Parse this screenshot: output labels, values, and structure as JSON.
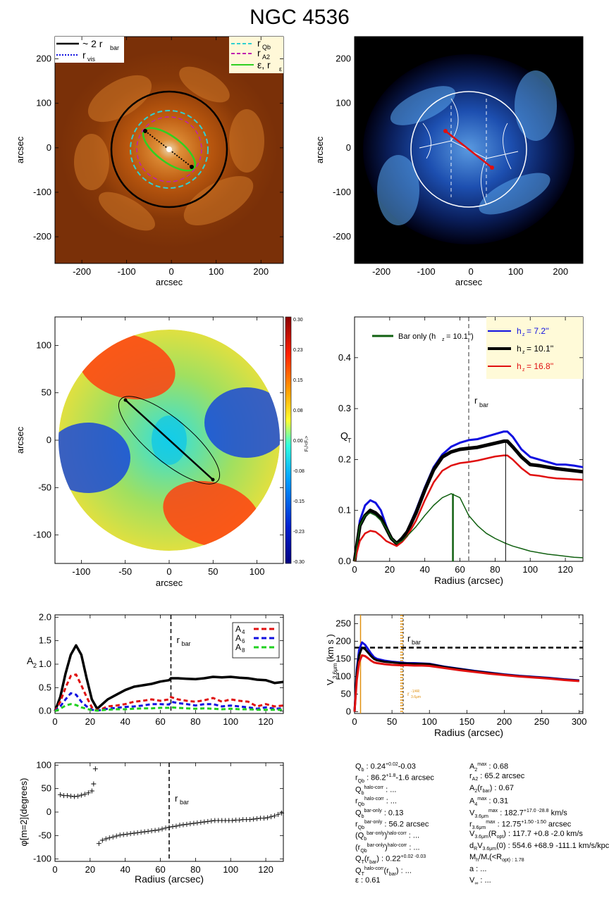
{
  "title": "NGC 4536",
  "colors": {
    "blue": "#1010e0",
    "black": "#000000",
    "red": "#e01010",
    "green": "#106010",
    "cyan": "#30d0d0",
    "magenta": "#c020b0",
    "lime": "#30d020",
    "orange": "#e09010"
  },
  "chart_data": [
    {
      "id": "image-panel",
      "type": "heatmap",
      "xlabel": "arcsec",
      "ylabel": "arcsec",
      "xlim": [
        -260,
        250
      ],
      "ylim": [
        -260,
        250
      ],
      "xticks": [
        "-200",
        "-100",
        "0",
        "100",
        "200"
      ],
      "yticks": [
        "-200",
        "-100",
        "0",
        "100",
        "200"
      ],
      "legend_left": [
        "~ 2 r",
        "bar",
        "r",
        "vis"
      ],
      "legend_right": [
        "r",
        "Qb",
        "r",
        "A2",
        "ε, r",
        "ε"
      ]
    },
    {
      "id": "residual-panel",
      "type": "heatmap",
      "xlabel": "arcsec",
      "ylabel": "arcsec",
      "xlim": [
        -260,
        250
      ],
      "ylim": [
        -260,
        250
      ],
      "xticks": [
        "-200",
        "-100",
        "0",
        "100",
        "200"
      ],
      "yticks": [
        "-200",
        "-100",
        "0",
        "100",
        "200"
      ]
    },
    {
      "id": "force-map",
      "type": "heatmap",
      "xlabel": "arcsec",
      "ylabel": "arcsec",
      "xlim": [
        -130,
        130
      ],
      "ylim": [
        -130,
        130
      ],
      "xticks": [
        "-100",
        "-50",
        "0",
        "50",
        "100"
      ],
      "yticks": [
        "-100",
        "-50",
        "0",
        "50",
        "100"
      ],
      "colorbar_label": "Fₜ/<Fᵣ>",
      "colorbar_ticks": [
        "0.30",
        "0.23",
        "0.15",
        "0.08",
        "0.00",
        "-0.08",
        "-0.15",
        "-0.23",
        "-0.30"
      ]
    },
    {
      "id": "qt-profile",
      "type": "line",
      "xlabel": "Radius (arcsec)",
      "ylabel": "Q",
      "xlim": [
        0,
        130
      ],
      "ylim": [
        0,
        0.48
      ],
      "xticks": [
        "0",
        "20",
        "40",
        "60",
        "80",
        "100",
        "120"
      ],
      "yticks": [
        "0.0",
        "0.1",
        "0.2",
        "0.3",
        "0.4"
      ],
      "rbar_label": "r",
      "rbar_sub": "bar",
      "legend_baronly": "Bar only (h",
      "legend_baronly_val": "=  10.1'')",
      "legend": [
        {
          "label": "h",
          "val": "=  7.2''"
        },
        {
          "label": "h",
          "val": "=  10.1''"
        },
        {
          "label": "h",
          "val": "=  16.8''"
        }
      ],
      "x": [
        0,
        3,
        6,
        9,
        12,
        15,
        18,
        21,
        24,
        27,
        30,
        35,
        40,
        45,
        50,
        55,
        60,
        65,
        70,
        75,
        80,
        85,
        87,
        90,
        95,
        100,
        105,
        110,
        115,
        120,
        125,
        130
      ],
      "series": [
        {
          "values": [
            0,
            0.08,
            0.11,
            0.12,
            0.115,
            0.1,
            0.07,
            0.045,
            0.035,
            0.045,
            0.06,
            0.1,
            0.145,
            0.185,
            0.21,
            0.225,
            0.233,
            0.238,
            0.24,
            0.245,
            0.25,
            0.255,
            0.255,
            0.245,
            0.22,
            0.205,
            0.2,
            0.195,
            0.19,
            0.19,
            0.188,
            0.185
          ]
        },
        {
          "values": [
            0,
            0.07,
            0.09,
            0.1,
            0.095,
            0.085,
            0.065,
            0.045,
            0.035,
            0.045,
            0.058,
            0.095,
            0.14,
            0.18,
            0.205,
            0.215,
            0.22,
            0.222,
            0.224,
            0.228,
            0.232,
            0.236,
            0.236,
            0.225,
            0.205,
            0.19,
            0.188,
            0.185,
            0.182,
            0.18,
            0.178,
            0.176
          ]
        },
        {
          "values": [
            0,
            0.04,
            0.055,
            0.06,
            0.058,
            0.05,
            0.04,
            0.035,
            0.03,
            0.038,
            0.05,
            0.08,
            0.12,
            0.155,
            0.178,
            0.188,
            0.193,
            0.195,
            0.198,
            0.202,
            0.206,
            0.208,
            0.208,
            0.2,
            0.183,
            0.17,
            0.168,
            0.165,
            0.163,
            0.162,
            0.161,
            0.16
          ]
        },
        {
          "values": [
            0,
            0.07,
            0.09,
            0.095,
            0.09,
            0.08,
            0.065,
            0.045,
            0.035,
            0.04,
            0.05,
            0.068,
            0.09,
            0.11,
            0.125,
            0.133,
            0.125,
            0.09,
            0.07,
            0.055,
            0.045,
            0.037,
            0.034,
            0.03,
            0.025,
            0.02,
            0.017,
            0.014,
            0.012,
            0.01,
            0.008,
            0.007
          ]
        }
      ],
      "markers": [
        {
          "x": 56,
          "y": 0.133,
          "series": 3
        },
        {
          "x": 86,
          "y": 0.236,
          "series": 1
        }
      ],
      "rbar": 65
    },
    {
      "id": "fourier-amplitudes",
      "type": "line",
      "xlabel": "",
      "ylabel": "A",
      "xlim": [
        0,
        130
      ],
      "ylim": [
        -0.05,
        2.05
      ],
      "xticks": [
        "0",
        "20",
        "40",
        "60",
        "80",
        "100",
        "120"
      ],
      "yticks": [
        "0.0",
        "0.5",
        "1.0",
        "1.5",
        "2.0"
      ],
      "rbar_label": "r",
      "rbar_sub": "bar",
      "rbar": 66,
      "legend": [
        "A",
        "4",
        "A",
        "6",
        "A",
        "8"
      ],
      "x": [
        0,
        3,
        6,
        9,
        12,
        15,
        18,
        21,
        24,
        27,
        30,
        35,
        40,
        45,
        50,
        55,
        60,
        65,
        66,
        70,
        75,
        80,
        85,
        90,
        95,
        100,
        105,
        110,
        115,
        120,
        125,
        130
      ],
      "series": [
        {
          "values": [
            0,
            0.3,
            0.8,
            1.2,
            1.4,
            1.2,
            0.7,
            0.25,
            0.05,
            0.15,
            0.25,
            0.35,
            0.45,
            0.52,
            0.55,
            0.58,
            0.63,
            0.66,
            0.7,
            0.7,
            0.69,
            0.68,
            0.7,
            0.73,
            0.72,
            0.73,
            0.71,
            0.7,
            0.67,
            0.66,
            0.6,
            0.62
          ]
        },
        {
          "values": [
            0,
            0.2,
            0.5,
            0.75,
            0.78,
            0.55,
            0.3,
            0.08,
            0.02,
            0.05,
            0.1,
            0.12,
            0.15,
            0.2,
            0.22,
            0.25,
            0.22,
            0.25,
            0.3,
            0.25,
            0.22,
            0.2,
            0.23,
            0.28,
            0.2,
            0.25,
            0.22,
            0.2,
            0.1,
            0.15,
            0.1,
            0.12
          ]
        },
        {
          "values": [
            0,
            0.1,
            0.25,
            0.38,
            0.35,
            0.2,
            0.1,
            0.03,
            0.01,
            0.03,
            0.05,
            0.07,
            0.09,
            0.1,
            0.12,
            0.15,
            0.15,
            0.14,
            0.2,
            0.17,
            0.15,
            0.12,
            0.15,
            0.15,
            0.1,
            0.12,
            0.1,
            0.08,
            0.05,
            0.08,
            0.05,
            0.06
          ]
        },
        {
          "values": [
            0,
            0.05,
            0.12,
            0.15,
            0.13,
            0.08,
            0.05,
            0.02,
            0.01,
            0.02,
            0.03,
            0.04,
            0.04,
            0.05,
            0.06,
            0.06,
            0.07,
            0.07,
            0.08,
            0.07,
            0.06,
            0.05,
            0.06,
            0.05,
            0.04,
            0.05,
            0.04,
            0.04,
            0.03,
            0.03,
            0.03,
            0.03
          ]
        }
      ]
    },
    {
      "id": "rotation-curve",
      "type": "line",
      "xlabel": "Radius (arcsec)",
      "ylabel": "V",
      "ylabel_sub": "3.6μm",
      "ylabel_unit": "(km s",
      "xlim": [
        0,
        305
      ],
      "ylim": [
        -5,
        275
      ],
      "xticks": [
        "0",
        "50",
        "100",
        "150",
        "200",
        "250",
        "300"
      ],
      "yticks": [
        "0",
        "50",
        "100",
        "150",
        "200",
        "250"
      ],
      "rbar_label": "r",
      "rbar_sub": "bar",
      "rbar": 65,
      "orange_label": "r",
      "orange_sup": "-1/4R",
      "orange_sub": "3.6μm",
      "vmax_line": 182,
      "x": [
        0,
        3,
        6,
        10,
        14,
        18,
        22,
        26,
        30,
        40,
        50,
        60,
        70,
        80,
        90,
        100,
        120,
        140,
        160,
        180,
        200,
        220,
        240,
        260,
        280,
        300
      ],
      "series": [
        {
          "values": [
            0,
            120,
            175,
            197,
            190,
            178,
            165,
            155,
            150,
            145,
            142,
            140,
            138,
            138,
            137,
            136,
            128,
            122,
            116,
            111,
            106,
            102,
            99,
            96,
            92,
            89
          ]
        },
        {
          "values": [
            0,
            110,
            160,
            182,
            178,
            168,
            158,
            150,
            146,
            142,
            140,
            138,
            137,
            136,
            136,
            135,
            127,
            121,
            115,
            110,
            105,
            101,
            98,
            95,
            91,
            88
          ]
        },
        {
          "values": [
            0,
            90,
            140,
            160,
            158,
            152,
            145,
            140,
            138,
            135,
            133,
            132,
            132,
            131,
            131,
            130,
            124,
            118,
            113,
            108,
            104,
            100,
            97,
            94,
            90,
            87
          ]
        }
      ],
      "orange_lines": [
        8,
        62,
        64
      ]
    },
    {
      "id": "phase-angle",
      "type": "scatter",
      "xlabel": "Radius (arcsec)",
      "ylabel": "φ[m=2](degrees)",
      "xlim": [
        0,
        130
      ],
      "ylim": [
        -105,
        105
      ],
      "xticks": [
        "0",
        "20",
        "40",
        "60",
        "80",
        "100",
        "120"
      ],
      "yticks": [
        "100",
        "50",
        "0",
        "-50",
        "-100"
      ],
      "rbar_label": "r",
      "rbar_sub": "bar",
      "rbar": 65,
      "x_inner": [
        3,
        5,
        7,
        9,
        11,
        13,
        15,
        17,
        19,
        21,
        22,
        23
      ],
      "y_inner": [
        37,
        35,
        35,
        34,
        33,
        34,
        36,
        38,
        41,
        45,
        60,
        92
      ],
      "x_outer": [
        25,
        27,
        29,
        31,
        33,
        35,
        37,
        39,
        41,
        43,
        45,
        47,
        49,
        51,
        53,
        55,
        57,
        59,
        61,
        63,
        65,
        67,
        69,
        71,
        73,
        75,
        77,
        79,
        81,
        83,
        85,
        87,
        89,
        91,
        93,
        95,
        97,
        99,
        101,
        103,
        105,
        107,
        109,
        111,
        113,
        115,
        117,
        119,
        121,
        123,
        125,
        127,
        129
      ],
      "y_outer": [
        -67,
        -60,
        -57,
        -55,
        -53,
        -51,
        -49,
        -48,
        -47,
        -46,
        -45,
        -44,
        -43,
        -42,
        -41,
        -40,
        -39,
        -38,
        -36,
        -34,
        -32,
        -31,
        -30,
        -28,
        -27,
        -26,
        -25,
        -24,
        -23,
        -22,
        -21,
        -20,
        -19,
        -18,
        -18,
        -18,
        -18,
        -18,
        -18,
        -17,
        -17,
        -16,
        -16,
        -16,
        -15,
        -14,
        -13,
        -13,
        -12,
        -10,
        -8,
        -5,
        -2
      ]
    }
  ],
  "params_left": [
    [
      "Q",
      "b",
      " :  0.24",
      "+0.02",
      "-0.03",
      ""
    ],
    [
      "r",
      "Qb",
      " :  86.2",
      "+1.8",
      "-1.6",
      " arcsec"
    ],
    [
      "Q",
      "b",
      "halo-corr",
      " : ...",
      "",
      ""
    ],
    [
      "r",
      "Qb",
      "halo-corr",
      " : ...",
      "",
      ""
    ],
    [
      "Q",
      "b",
      "bar-only",
      " :  0.13",
      "",
      ""
    ],
    [
      "r",
      "Qb",
      "bar-only",
      " :  56.2 arcsec",
      "",
      ""
    ],
    [
      "(Q",
      "b",
      "bar-only",
      ")",
      "halo-corr",
      " : ..."
    ],
    [
      "(r",
      "Qb",
      "bar-only",
      ")",
      "halo-corr",
      " : ..."
    ],
    [
      "Q",
      "T",
      "(r",
      "bar",
      ") :  0.22",
      "+0.02 -0.03"
    ],
    [
      "Q",
      "T",
      "halo-corr",
      "(r",
      "bar",
      ") : ..."
    ],
    [
      "ε :  0.61",
      "",
      "",
      "",
      "",
      ""
    ]
  ],
  "params_right": [
    [
      "A",
      "2",
      "max",
      " :  0.68",
      "",
      ""
    ],
    [
      "r",
      "A2",
      " :  65.2 arcsec",
      "",
      "",
      ""
    ],
    [
      "A",
      "2",
      "(r",
      "bar",
      ") :  0.67",
      ""
    ],
    [
      "A",
      "4",
      "max",
      " :  0.31",
      "",
      ""
    ],
    [
      "V",
      "3.6μm",
      "max",
      " :  182.7",
      "+17.0 -28.8",
      " km/s"
    ],
    [
      "r",
      "3.6μm",
      "max",
      " :  12.75",
      "+1.50 -1.50",
      " arcsec"
    ],
    [
      "V",
      "3.6μm",
      "(R",
      "opt",
      ") :  117.7",
      " +0.8 -2.0 km/s"
    ],
    [
      "d",
      "R",
      "V",
      "3.6μm",
      "(0) :  554.6",
      " +68.9 -111.1 km/s/kpc"
    ],
    [
      "M",
      "h",
      "/M",
      "*",
      "(<R",
      "opt) :  1.78"
    ],
    [
      "a : ...",
      "",
      "",
      "",
      "",
      ""
    ],
    [
      "V",
      "∞",
      " : ...",
      "",
      "",
      ""
    ]
  ]
}
